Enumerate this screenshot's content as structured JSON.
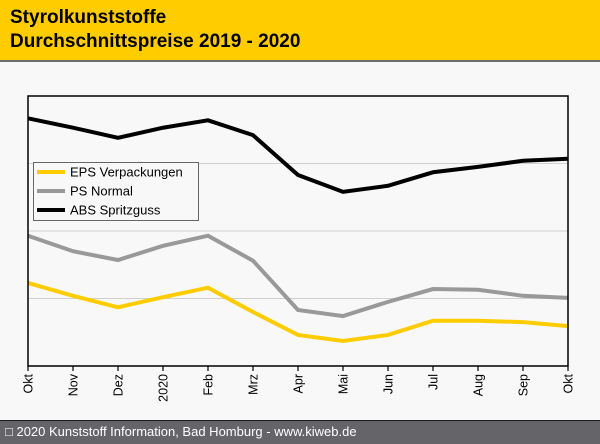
{
  "header": {
    "title_line1": "Styrolkunststoffe",
    "title_line2": "Durchschnittspreise 2019 - 2020"
  },
  "footer": {
    "copyright_text": "□ 2020 Kunststoff Information, Bad Homburg - www.kiweb.de"
  },
  "colors": {
    "header_bg": "#ffcc00",
    "eps": "#ffcc00",
    "ps": "#999999",
    "abs": "#000000"
  },
  "chart_data": {
    "type": "line",
    "title": "Styrolkunststoffe Durchschnittspreise 2019 - 2020",
    "xlabel": "",
    "ylabel": "",
    "y_tick_labels_shown": false,
    "ylim": [
      0,
      4
    ],
    "y_gridlines": [
      1,
      2,
      3
    ],
    "grid": true,
    "legend_position": "upper-left",
    "categories": [
      "Okt",
      "Nov",
      "Dez",
      "2020",
      "Feb",
      "Mrz",
      "Apr",
      "Mai",
      "Jun",
      "Jul",
      "Aug",
      "Sep",
      "Okt"
    ],
    "series": [
      {
        "name": "EPS Verpackungen",
        "color": "#ffcc00",
        "values": [
          1.23,
          1.04,
          0.87,
          1.02,
          1.16,
          0.8,
          0.46,
          0.37,
          0.46,
          0.67,
          0.67,
          0.65,
          0.59
        ]
      },
      {
        "name": "PS Normal",
        "color": "#999999",
        "values": [
          1.93,
          1.7,
          1.57,
          1.78,
          1.93,
          1.56,
          0.83,
          0.74,
          0.95,
          1.14,
          1.13,
          1.04,
          1.01
        ]
      },
      {
        "name": "ABS Spritzguss",
        "color": "#000000",
        "values": [
          3.67,
          3.53,
          3.38,
          3.53,
          3.64,
          3.42,
          2.83,
          2.58,
          2.67,
          2.87,
          2.95,
          3.04,
          3.07
        ]
      }
    ]
  }
}
